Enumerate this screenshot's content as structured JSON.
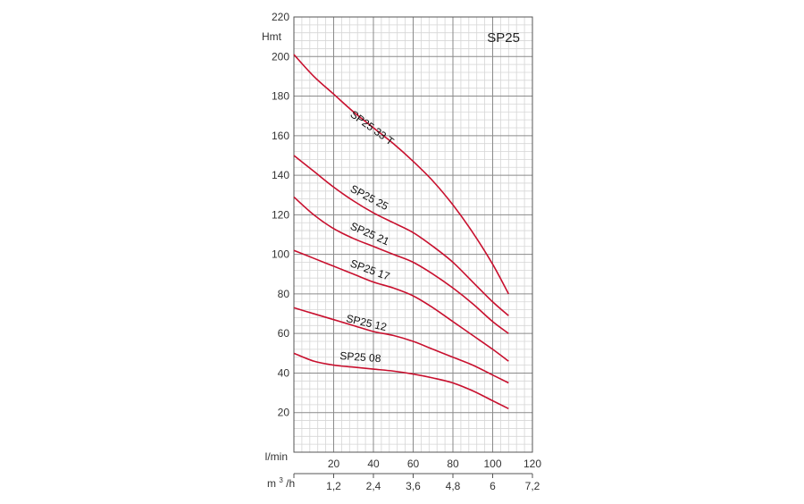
{
  "chart_data": {
    "type": "line",
    "title": "SP25",
    "ylabel": "Hmt",
    "xlabel": "l/min",
    "x2label_base": "m",
    "x2label_sup": "3",
    "x2label_tail": "/h",
    "xlim": [
      0,
      120
    ],
    "ylim": [
      0,
      220
    ],
    "grid": true,
    "xticks": [
      {
        "v": 20,
        "label": "20"
      },
      {
        "v": 40,
        "label": "40"
      },
      {
        "v": 60,
        "label": "60"
      },
      {
        "v": 80,
        "label": "80"
      },
      {
        "v": 100,
        "label": "100"
      },
      {
        "v": 120,
        "label": "120"
      }
    ],
    "x2ticks": [
      {
        "v": 20,
        "label": "1,2"
      },
      {
        "v": 40,
        "label": "2,4"
      },
      {
        "v": 60,
        "label": "3,6"
      },
      {
        "v": 80,
        "label": "4,8"
      },
      {
        "v": 100,
        "label": "6"
      },
      {
        "v": 120,
        "label": "7,2"
      }
    ],
    "yticks": [
      {
        "v": 20,
        "label": "20"
      },
      {
        "v": 40,
        "label": "40"
      },
      {
        "v": 60,
        "label": "60"
      },
      {
        "v": 80,
        "label": "80"
      },
      {
        "v": 100,
        "label": "100"
      },
      {
        "v": 120,
        "label": "120"
      },
      {
        "v": 140,
        "label": "140"
      },
      {
        "v": 160,
        "label": "160"
      },
      {
        "v": 180,
        "label": "180"
      },
      {
        "v": 200,
        "label": "200"
      },
      {
        "v": 220,
        "label": "220"
      }
    ],
    "colors": {
      "curve": "#c8102e",
      "major_grid": "#8a8a8a",
      "minor_grid": "#d6d6d6",
      "axis": "#555555"
    },
    "series": [
      {
        "name": "SP25 33 T",
        "label_at": {
          "x": 28,
          "y": 170,
          "angle": 36
        },
        "x": [
          0,
          10,
          20,
          30,
          40,
          50,
          60,
          70,
          80,
          90,
          100,
          108
        ],
        "y": [
          201,
          190,
          181,
          172,
          164,
          156,
          147,
          137,
          125,
          111,
          95,
          80
        ]
      },
      {
        "name": "SP25 25",
        "label_at": {
          "x": 28,
          "y": 132,
          "angle": 28
        },
        "x": [
          0,
          10,
          20,
          30,
          40,
          50,
          60,
          70,
          80,
          90,
          100,
          108
        ],
        "y": [
          150,
          142,
          134,
          127,
          121,
          116,
          111,
          104,
          96,
          86,
          76,
          69
        ]
      },
      {
        "name": "SP25 21",
        "label_at": {
          "x": 28,
          "y": 113,
          "angle": 24
        },
        "x": [
          0,
          10,
          20,
          30,
          40,
          50,
          60,
          70,
          80,
          90,
          100,
          108
        ],
        "y": [
          129,
          120,
          113,
          108,
          104,
          100,
          96,
          90,
          83,
          75,
          66,
          60
        ]
      },
      {
        "name": "SP25 17",
        "label_at": {
          "x": 28,
          "y": 94,
          "angle": 20
        },
        "x": [
          0,
          10,
          20,
          30,
          40,
          50,
          60,
          70,
          80,
          90,
          100,
          108
        ],
        "y": [
          102,
          98,
          94,
          90,
          86,
          83,
          79,
          73,
          66,
          59,
          52,
          46
        ]
      },
      {
        "name": "SP25 12",
        "label_at": {
          "x": 26,
          "y": 66,
          "angle": 13
        },
        "x": [
          0,
          10,
          20,
          30,
          40,
          50,
          60,
          70,
          80,
          90,
          100,
          108
        ],
        "y": [
          73,
          70,
          67,
          64,
          61,
          59,
          56,
          52,
          48,
          44,
          39,
          35
        ]
      },
      {
        "name": "SP25 08",
        "label_at": {
          "x": 23,
          "y": 47,
          "angle": 4
        },
        "x": [
          0,
          10,
          20,
          30,
          40,
          50,
          60,
          70,
          80,
          90,
          100,
          108
        ],
        "y": [
          50,
          46,
          44,
          43,
          42,
          41,
          39.5,
          37.5,
          35,
          31,
          26,
          22
        ]
      }
    ]
  }
}
